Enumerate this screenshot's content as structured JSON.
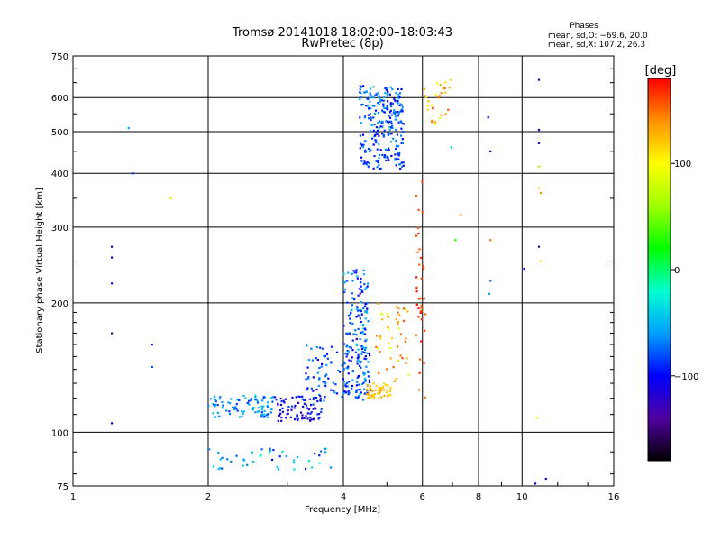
{
  "chart_data": {
    "type": "scatter",
    "title": "Tromsø 20141018 18:02:00–18:03:43",
    "subtitle": "RwPretec (8p)",
    "xlabel": "Frequency [MHz]",
    "ylabel": "Stationary phase Virtual Height [km]",
    "x_scale": "log",
    "y_scale": "log",
    "xlim": [
      1,
      16
    ],
    "ylim": [
      75,
      750
    ],
    "x_ticks": [
      {
        "value": 1,
        "label": "1"
      },
      {
        "value": 2,
        "label": "2"
      },
      {
        "value": 4,
        "label": "4"
      },
      {
        "value": 6,
        "label": "6"
      },
      {
        "value": 8,
        "label": "8"
      },
      {
        "value": 10,
        "label": "10"
      },
      {
        "value": 16,
        "label": "16"
      }
    ],
    "y_ticks": [
      {
        "value": 75,
        "label": "75"
      },
      {
        "value": 100,
        "label": "100"
      },
      {
        "value": 200,
        "label": "200"
      },
      {
        "value": 300,
        "label": "300"
      },
      {
        "value": 400,
        "label": "400"
      },
      {
        "value": 500,
        "label": "500"
      },
      {
        "value": 600,
        "label": "600"
      },
      {
        "value": 750,
        "label": "750"
      }
    ],
    "grid": true,
    "phases_box": {
      "title": "Phases",
      "line1": "mean, sd,O: −69.6, 20.0",
      "line2": "mean, sd,X: 107.2, 26.3"
    },
    "colorbar": {
      "label": "[deg]",
      "min": -180,
      "max": 180,
      "ticks": [
        {
          "value": 100,
          "label": "100"
        },
        {
          "value": 0,
          "label": "0"
        },
        {
          "value": -100,
          "label": "−100"
        }
      ],
      "stops": [
        {
          "value": -180,
          "color": "#000000"
        },
        {
          "value": -140,
          "color": "#5000a0"
        },
        {
          "value": -100,
          "color": "#0000ff"
        },
        {
          "value": -60,
          "color": "#00a0ff"
        },
        {
          "value": -20,
          "color": "#00ffd0"
        },
        {
          "value": 20,
          "color": "#00ff00"
        },
        {
          "value": 60,
          "color": "#a0ff00"
        },
        {
          "value": 100,
          "color": "#ffff00"
        },
        {
          "value": 140,
          "color": "#ff9000"
        },
        {
          "value": 180,
          "color": "#ff0000"
        }
      ]
    },
    "clusters": [
      {
        "fmin": 4.35,
        "fmax": 5.45,
        "hmin": 410,
        "hmax": 640,
        "n": 260,
        "pmin": -110,
        "pmax": -50
      },
      {
        "fmin": 4.0,
        "fmax": 4.55,
        "hmin": 120,
        "hmax": 240,
        "n": 170,
        "pmin": -110,
        "pmax": -40
      },
      {
        "fmin": 3.3,
        "fmax": 4.6,
        "hmin": 118,
        "hmax": 160,
        "n": 110,
        "pmin": -110,
        "pmax": -60
      },
      {
        "fmin": 2.0,
        "fmax": 2.8,
        "hmin": 108,
        "hmax": 122,
        "n": 90,
        "pmin": -90,
        "pmax": -40
      },
      {
        "fmin": 2.8,
        "fmax": 3.6,
        "hmin": 106,
        "hmax": 122,
        "n": 80,
        "pmin": -130,
        "pmax": -80
      },
      {
        "fmin": 4.5,
        "fmax": 5.1,
        "hmin": 120,
        "hmax": 130,
        "n": 55,
        "pmin": 110,
        "pmax": 135
      },
      {
        "fmin": 4.7,
        "fmax": 5.6,
        "hmin": 130,
        "hmax": 200,
        "n": 45,
        "pmin": 80,
        "pmax": 160
      },
      {
        "fmin": 5.8,
        "fmax": 6.1,
        "hmin": 120,
        "hmax": 400,
        "n": 38,
        "pmin": 150,
        "pmax": 180
      },
      {
        "fmin": 6.0,
        "fmax": 7.0,
        "hmin": 520,
        "hmax": 660,
        "n": 28,
        "pmin": 90,
        "pmax": 160
      },
      {
        "fmin": 2.0,
        "fmax": 3.8,
        "hmin": 82,
        "hmax": 92,
        "n": 45,
        "pmin": -100,
        "pmax": -20
      }
    ],
    "points": [
      {
        "x": 1.22,
        "y": 270,
        "phase": -110
      },
      {
        "x": 1.22,
        "y": 255,
        "phase": -100
      },
      {
        "x": 1.22,
        "y": 222,
        "phase": -95
      },
      {
        "x": 1.22,
        "y": 170,
        "phase": -140
      },
      {
        "x": 1.22,
        "y": 105,
        "phase": -100
      },
      {
        "x": 1.33,
        "y": 510,
        "phase": -60
      },
      {
        "x": 1.36,
        "y": 400,
        "phase": -90
      },
      {
        "x": 1.5,
        "y": 160,
        "phase": -110
      },
      {
        "x": 1.5,
        "y": 142,
        "phase": -80
      },
      {
        "x": 1.65,
        "y": 350,
        "phase": 110
      },
      {
        "x": 6.95,
        "y": 460,
        "phase": -40
      },
      {
        "x": 7.3,
        "y": 320,
        "phase": 150
      },
      {
        "x": 7.1,
        "y": 280,
        "phase": 30
      },
      {
        "x": 8.4,
        "y": 540,
        "phase": -100
      },
      {
        "x": 8.5,
        "y": 450,
        "phase": -110
      },
      {
        "x": 8.5,
        "y": 225,
        "phase": -70
      },
      {
        "x": 8.45,
        "y": 210,
        "phase": -60
      },
      {
        "x": 8.5,
        "y": 280,
        "phase": 150
      },
      {
        "x": 10.1,
        "y": 240,
        "phase": -110
      },
      {
        "x": 10.9,
        "y": 660,
        "phase": -120
      },
      {
        "x": 10.9,
        "y": 505,
        "phase": -110
      },
      {
        "x": 10.9,
        "y": 470,
        "phase": -120
      },
      {
        "x": 10.9,
        "y": 415,
        "phase": 60
      },
      {
        "x": 10.9,
        "y": 370,
        "phase": 120
      },
      {
        "x": 11.0,
        "y": 360,
        "phase": 140
      },
      {
        "x": 10.9,
        "y": 270,
        "phase": -150
      },
      {
        "x": 11.0,
        "y": 250,
        "phase": 110
      },
      {
        "x": 10.8,
        "y": 108,
        "phase": 100
      },
      {
        "x": 11.3,
        "y": 78,
        "phase": -110
      },
      {
        "x": 10.7,
        "y": 76,
        "phase": -100
      }
    ]
  }
}
